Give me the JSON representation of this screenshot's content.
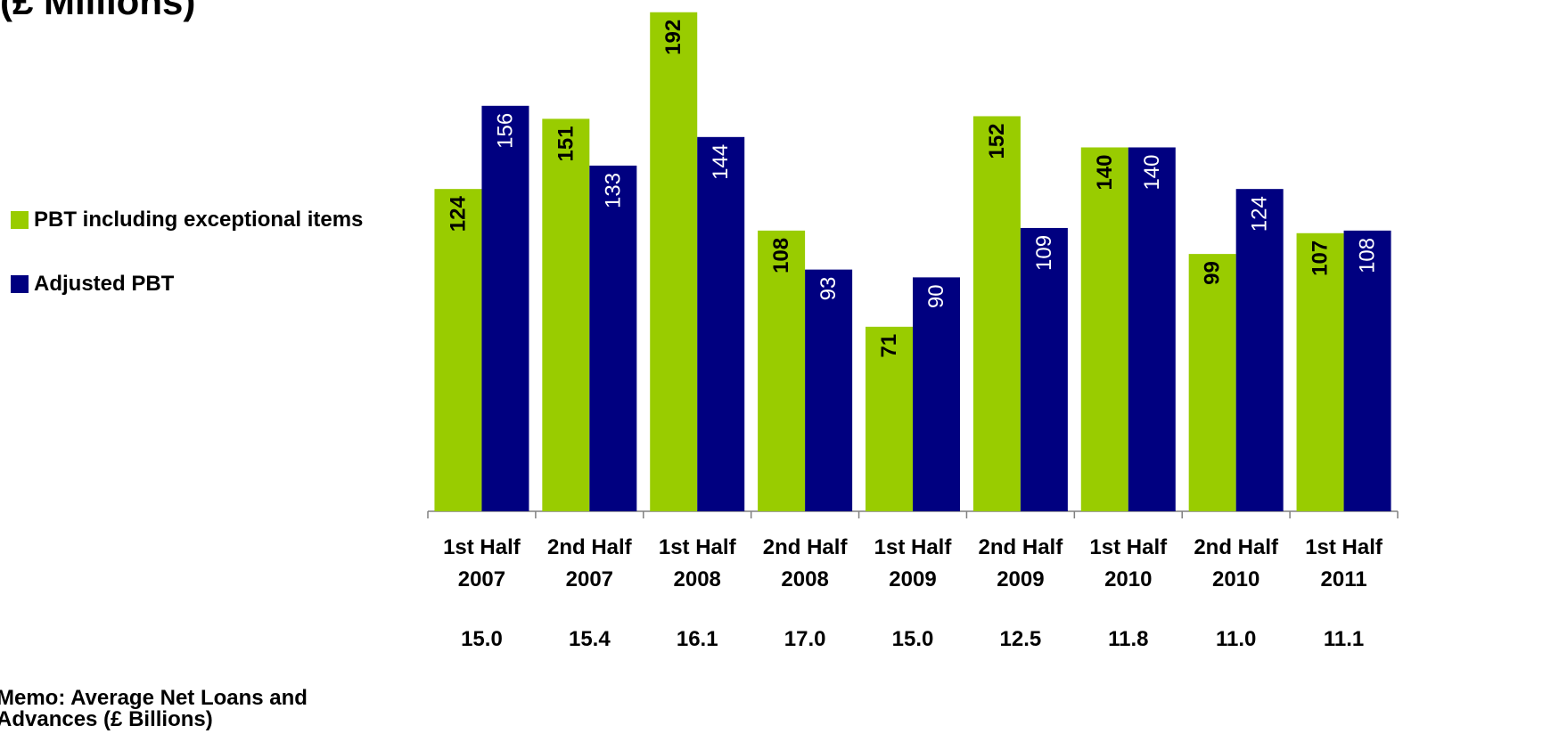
{
  "title": "(£ Millions)",
  "colors": {
    "pbt_including": "#99cc00",
    "adjusted_pbt": "#000080",
    "axis": "#808080"
  },
  "legend": [
    {
      "label": "PBT including exceptional items",
      "color": "#99cc00"
    },
    {
      "label": "Adjusted PBT",
      "color": "#000080"
    }
  ],
  "memo": {
    "label_line1": "Memo: Average Net Loans and",
    "label_line2": "Advances (£ Billions)",
    "values": [
      "15.0",
      "15.4",
      "16.1",
      "17.0",
      "15.0",
      "12.5",
      "11.8",
      "11.0",
      "11.1"
    ]
  },
  "chart_data": {
    "type": "bar",
    "title": "(£ Millions)",
    "categories": [
      [
        "1st Half",
        "2007"
      ],
      [
        "2nd Half",
        "2007"
      ],
      [
        "1st Half",
        "2008"
      ],
      [
        "2nd Half",
        "2008"
      ],
      [
        "1st Half",
        "2009"
      ],
      [
        "2nd Half",
        "2009"
      ],
      [
        "1st Half",
        "2010"
      ],
      [
        "2nd Half",
        "2010"
      ],
      [
        "1st Half",
        "2011"
      ]
    ],
    "series": [
      {
        "name": "PBT including exceptional items",
        "values": [
          124,
          151,
          192,
          108,
          71,
          152,
          140,
          99,
          107
        ]
      },
      {
        "name": "Adjusted PBT",
        "values": [
          156,
          133,
          144,
          93,
          90,
          109,
          140,
          124,
          108
        ]
      }
    ],
    "ylim": [
      0,
      195
    ],
    "legend_position": "left",
    "grid": false,
    "data_labels": "rotated inside top of bar"
  }
}
